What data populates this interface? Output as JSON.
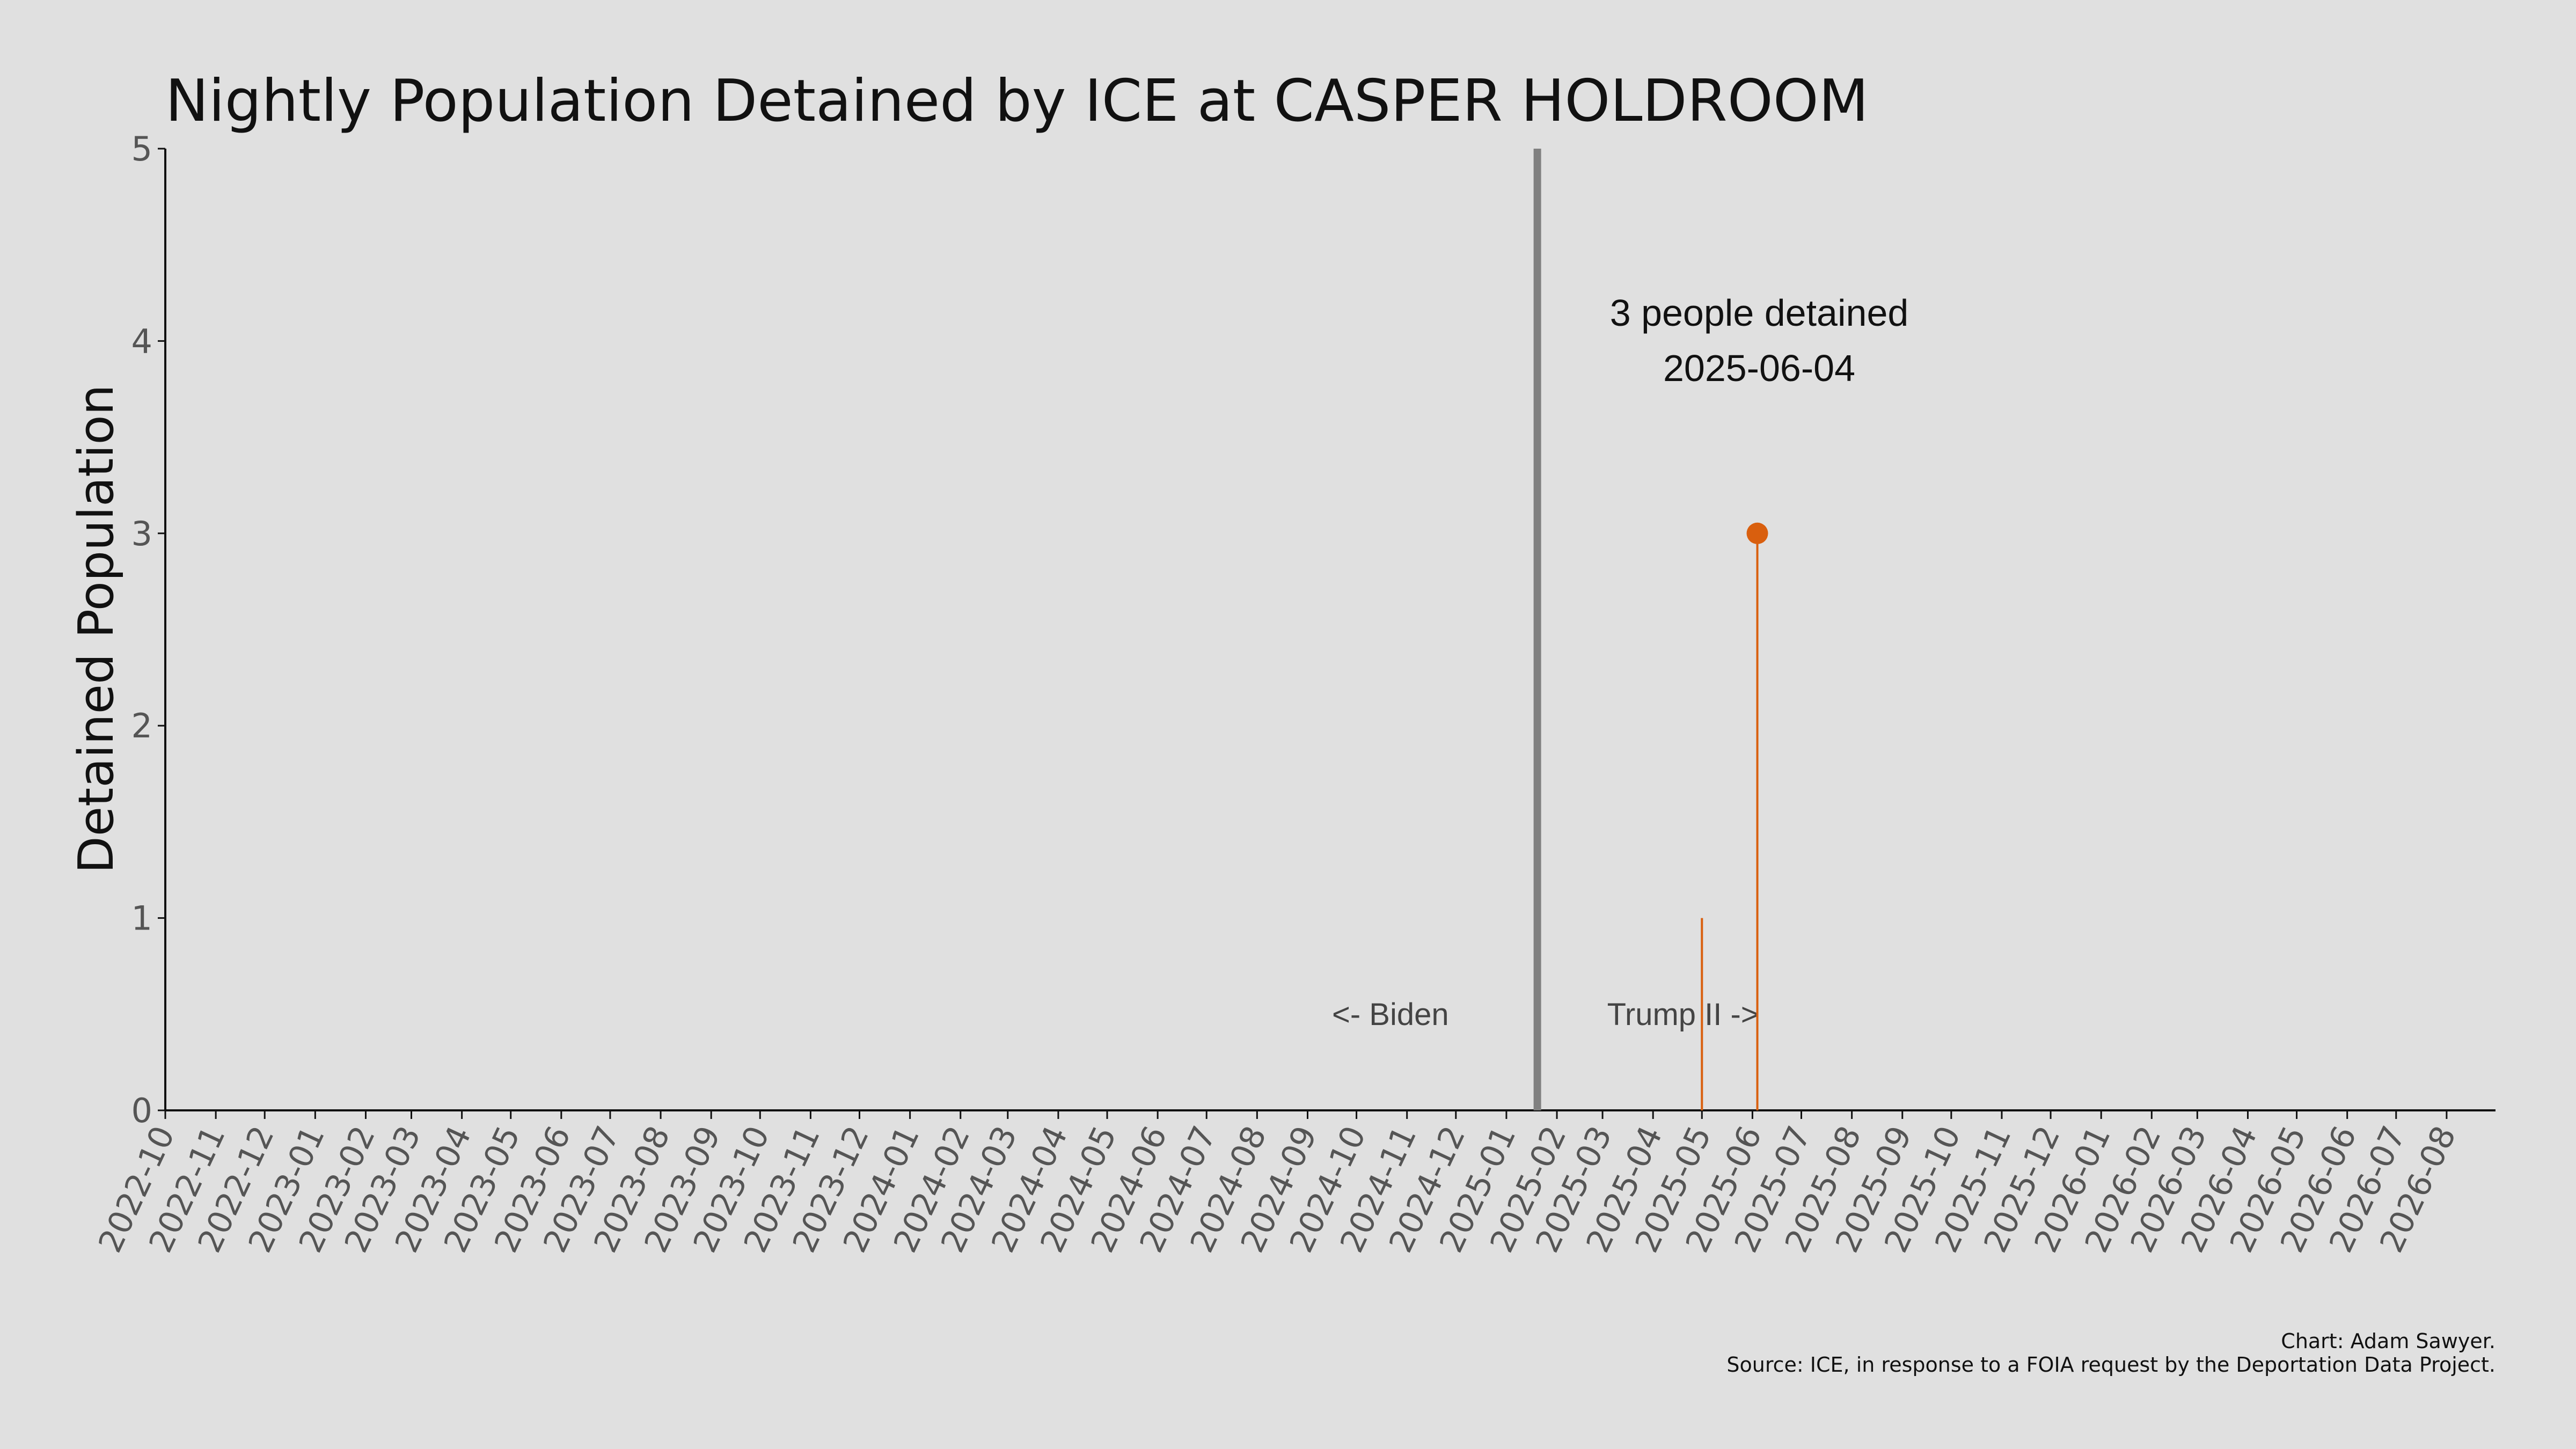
{
  "chart_data": {
    "type": "line",
    "title": "Nightly Population Detained by ICE at CASPER HOLDROOM",
    "ylabel": "Detained Population",
    "xlabel": "",
    "ylim": [
      0,
      5
    ],
    "yticks": [
      "0",
      "1",
      "2",
      "3",
      "4",
      "5"
    ],
    "xlim": [
      "2022-10-01",
      "2026-08-31"
    ],
    "xticks": [
      "2022-10",
      "2022-11",
      "2022-12",
      "2023-01",
      "2023-02",
      "2023-03",
      "2023-04",
      "2023-05",
      "2023-06",
      "2023-07",
      "2023-08",
      "2023-09",
      "2023-10",
      "2023-11",
      "2023-12",
      "2024-01",
      "2024-02",
      "2024-03",
      "2024-04",
      "2024-05",
      "2024-06",
      "2024-07",
      "2024-08",
      "2024-09",
      "2024-10",
      "2024-11",
      "2024-12",
      "2025-01",
      "2025-02",
      "2025-03",
      "2025-04",
      "2025-05",
      "2025-06",
      "2025-07",
      "2025-08",
      "2025-09",
      "2025-10",
      "2025-11",
      "2025-12",
      "2026-01",
      "2026-02",
      "2026-03",
      "2026-04",
      "2026-05",
      "2026-06",
      "2026-07",
      "2026-08"
    ],
    "grid": false,
    "series": [
      {
        "color": "#d95f0e",
        "points": [
          {
            "x": "2025-05-01",
            "y": 1
          },
          {
            "x": "2025-06-04",
            "y": 3
          }
        ]
      }
    ],
    "highlight": {
      "x": "2025-06-04",
      "y": 3
    },
    "annotation": {
      "line1": "3 people detained",
      "line2": "2025-06-04"
    },
    "vline": {
      "x": "2025-01-20",
      "color": "#808080"
    },
    "era_labels": {
      "left": "<- Biden",
      "right": "Trump II ->"
    },
    "credits": {
      "line1": "Chart: Adam Sawyer.",
      "line2": "Source: ICE, in response to a FOIA request by the Deportation Data Project."
    }
  }
}
